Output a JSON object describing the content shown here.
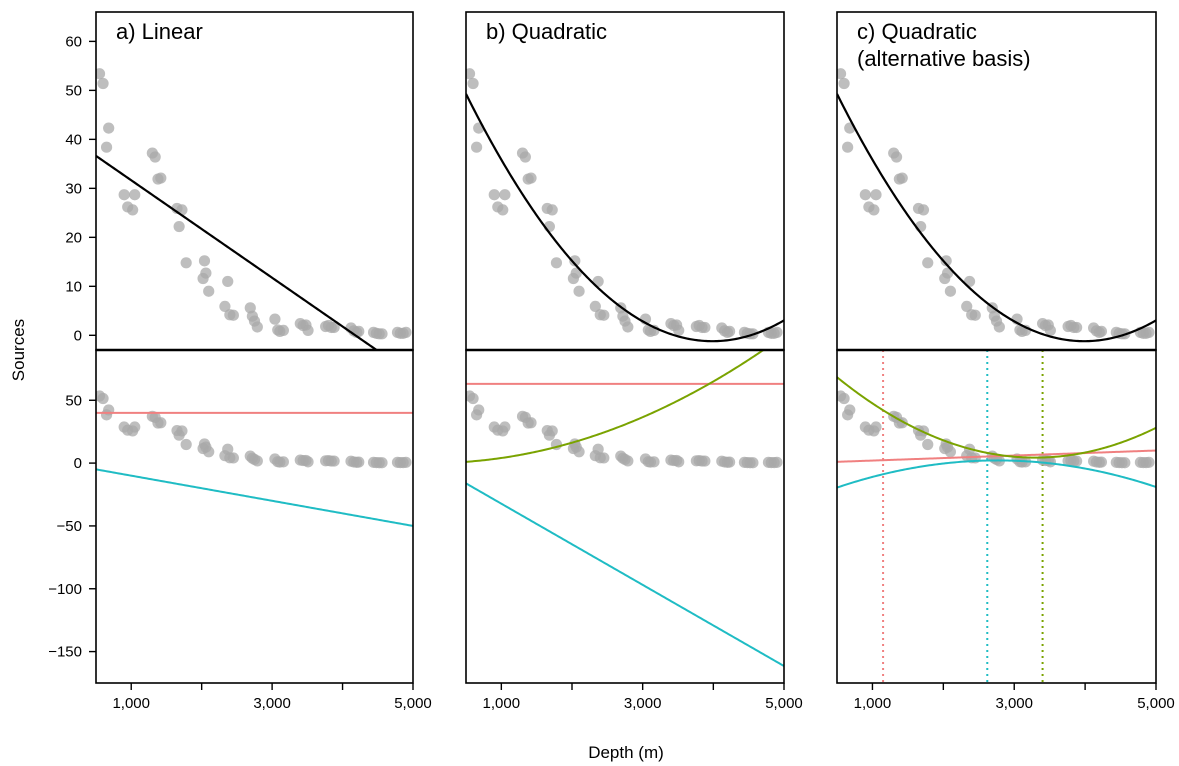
{
  "chart_data": {
    "type": "scatter",
    "xlabel": "Depth (m)",
    "ylabel": "Sources",
    "xlim": [
      500,
      5000
    ],
    "x_ticks": [
      1000,
      2000,
      3000,
      4000,
      5000
    ],
    "x_tick_labels": [
      "1,000",
      "",
      "3,000",
      "",
      "5,000"
    ],
    "top_ylim": [
      -3,
      66
    ],
    "top_y_ticks": [
      0,
      10,
      20,
      30,
      40,
      50,
      60
    ],
    "bottom_ylim": [
      -175,
      90
    ],
    "bottom_y_ticks": [
      -150,
      -100,
      -50,
      0,
      50
    ],
    "point_color": "#a8a8a8",
    "colors": {
      "fit": "#000000",
      "intercept": "#f08080",
      "linear": "#1fbcc4",
      "quadratic": "#7aa300"
    },
    "points": [
      [
        550,
        53.4
      ],
      [
        600,
        51.4
      ],
      [
        650,
        38.4
      ],
      [
        680,
        42.3
      ],
      [
        900,
        28.7
      ],
      [
        950,
        26.2
      ],
      [
        1020,
        25.6
      ],
      [
        1050,
        28.7
      ],
      [
        1300,
        37.2
      ],
      [
        1340,
        36.4
      ],
      [
        1380,
        31.9
      ],
      [
        1420,
        32.1
      ],
      [
        1650,
        25.9
      ],
      [
        1680,
        22.2
      ],
      [
        1720,
        25.6
      ],
      [
        1780,
        14.8
      ],
      [
        2020,
        11.6
      ],
      [
        2040,
        15.2
      ],
      [
        2060,
        12.7
      ],
      [
        2100,
        9.0
      ],
      [
        2330,
        5.9
      ],
      [
        2370,
        11.0
      ],
      [
        2400,
        4.2
      ],
      [
        2450,
        4.1
      ],
      [
        2690,
        5.6
      ],
      [
        2720,
        3.9
      ],
      [
        2750,
        2.9
      ],
      [
        2790,
        1.7
      ],
      [
        3040,
        3.3
      ],
      [
        3080,
        1.1
      ],
      [
        3110,
        0.8
      ],
      [
        3160,
        1.0
      ],
      [
        3400,
        2.4
      ],
      [
        3440,
        2.0
      ],
      [
        3480,
        2.1
      ],
      [
        3510,
        1.0
      ],
      [
        3760,
        1.8
      ],
      [
        3800,
        2.0
      ],
      [
        3840,
        1.6
      ],
      [
        3880,
        1.6
      ],
      [
        4120,
        1.5
      ],
      [
        4160,
        0.9
      ],
      [
        4200,
        0.6
      ],
      [
        4230,
        0.8
      ],
      [
        4440,
        0.6
      ],
      [
        4480,
        0.4
      ],
      [
        4520,
        0.3
      ],
      [
        4560,
        0.3
      ],
      [
        4780,
        0.6
      ],
      [
        4820,
        0.4
      ],
      [
        4860,
        0.4
      ],
      [
        4900,
        0.6
      ]
    ],
    "panels": [
      {
        "title": [
          "a) Linear"
        ],
        "fit": {
          "c0": 41.6,
          "c1": -0.00995,
          "c2": 0
        },
        "components": [
          {
            "role": "intercept",
            "c0": 40,
            "c1": 0,
            "c2": 0
          },
          {
            "role": "linear",
            "c0": 0,
            "c1": -0.01,
            "c2": 0
          }
        ],
        "vlines": []
      },
      {
        "title": [
          "b) Quadratic"
        ],
        "fit": {
          "c0": 64.8,
          "c1": -0.0331,
          "c2": 4.15e-06
        },
        "components": [
          {
            "role": "intercept",
            "c0": 63,
            "c1": 0,
            "c2": 0
          },
          {
            "role": "linear",
            "c0": 0,
            "c1": -0.0323,
            "c2": 0
          },
          {
            "role": "quadratic",
            "c0": 0,
            "c1": 0,
            "c2": 4.06e-06
          }
        ],
        "vlines": []
      },
      {
        "title": [
          "c) Quadratic",
          "(alternative basis)"
        ],
        "fit": {
          "c0": 64.8,
          "c1": -0.0331,
          "c2": 4.15e-06
        },
        "components": [
          {
            "role": "intercept",
            "c0": 0.006,
            "c1": 0.002,
            "c2": 0
          },
          {
            "role": "linear",
            "c0": -30.1,
            "c1": 0.02332,
            "c2": -4.22e-06
          },
          {
            "role": "quadratic",
            "c0": 93.28,
            "c1": -0.05394,
            "c2": 8.18e-06
          }
        ],
        "vlines": [
          {
            "x": 1150,
            "role": "intercept"
          },
          {
            "x": 2620,
            "role": "linear"
          },
          {
            "x": 3400,
            "role": "quadratic"
          }
        ]
      }
    ]
  }
}
